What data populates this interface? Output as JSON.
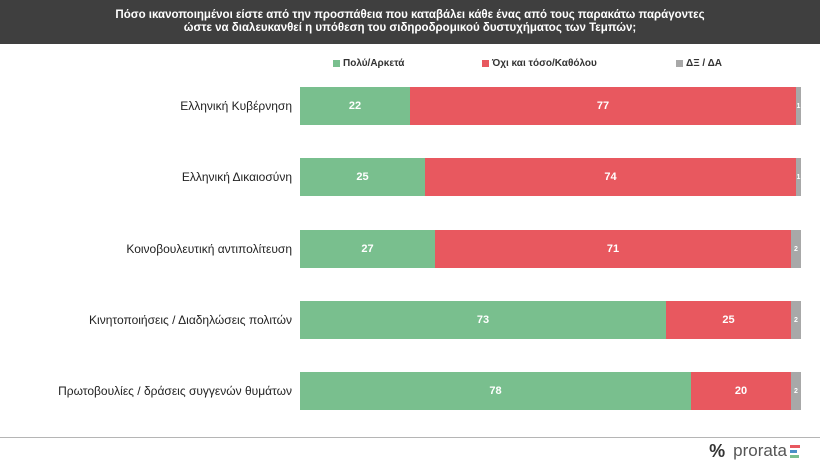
{
  "header": {
    "title_line1": "Πόσο ικανοποιημένοι είστε από την προσπάθεια που καταβάλει κάθε ένας από τους παρακάτω παράγοντες",
    "title_line2": "ώστε να διαλευκανθεί η υπόθεση του σιδηροδρομικού δυστυχήματος των Τεμπών;"
  },
  "colors": {
    "green": "#79bf8e",
    "red": "#e8585f",
    "grey": "#a8a8a8",
    "header_bg": "#3f3f3f"
  },
  "chart_data": {
    "type": "bar",
    "orientation": "horizontal-stacked-100",
    "categories": [
      "Ελληνική Κυβέρνηση",
      "Ελληνική Δικαιοσύνη",
      "Κοινοβουλευτική αντιπολίτευση",
      "Κινητοποιήσεις / Διαδηλώσεις πολιτών",
      "Πρωτοβουλίες / δράσεις συγγενών θυμάτων"
    ],
    "series": [
      {
        "name": "Πολύ/Αρκετά",
        "color": "#79bf8e",
        "values": [
          22,
          25,
          27,
          73,
          78
        ]
      },
      {
        "name": "Όχι και τόσο/Καθόλου",
        "color": "#e8585f",
        "values": [
          77,
          74,
          71,
          25,
          20
        ]
      },
      {
        "name": "ΔΞ / ΔΑ",
        "color": "#a8a8a8",
        "values": [
          1,
          1,
          2,
          2,
          2
        ]
      }
    ],
    "xlim": [
      0,
      100
    ],
    "grid": false,
    "legend_position": "top"
  },
  "brand": {
    "pct_icon": "percent-icon",
    "name": "prorata",
    "bars_colors": [
      "#e8585f",
      "#4a90c8",
      "#79bf8e"
    ]
  }
}
